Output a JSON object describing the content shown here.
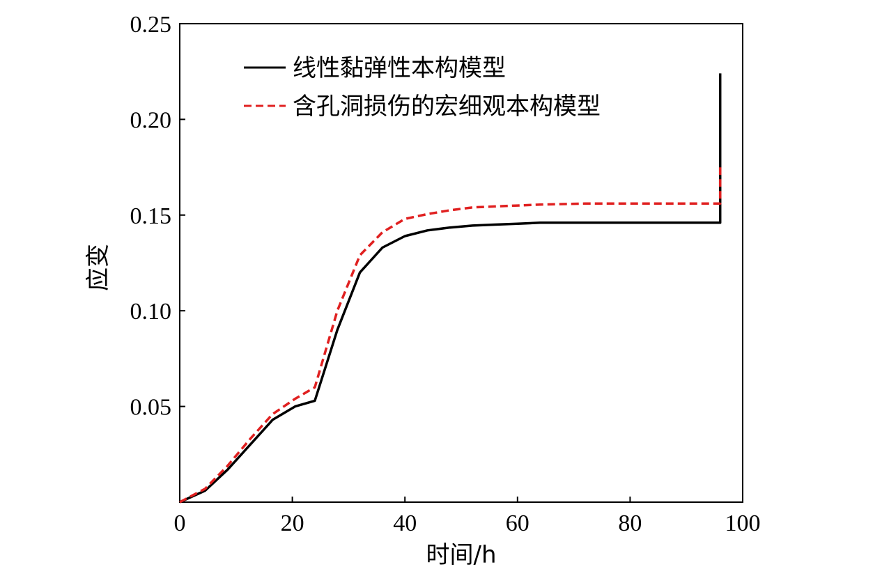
{
  "chart_data": {
    "type": "line",
    "title": "",
    "xlabel": "时间/h",
    "ylabel": "应变",
    "xlim": [
      0,
      100
    ],
    "ylim": [
      0,
      0.25
    ],
    "xticks": [
      0,
      20,
      40,
      60,
      80,
      100
    ],
    "xtick_labels": [
      "0",
      "20",
      "40",
      "60",
      "80",
      "100"
    ],
    "yticks": [
      0.05,
      0.1,
      0.15,
      0.2,
      0.25
    ],
    "ytick_labels": [
      "0.05",
      "0.10",
      "0.15",
      "0.20",
      "0.25"
    ],
    "grid": false,
    "legend_position": "top",
    "series": [
      {
        "name": "线性黏弹性本构模型",
        "color": "#000000",
        "style": "solid",
        "x": [
          0,
          4.5,
          8.5,
          12.5,
          16.5,
          20.5,
          24,
          28,
          32,
          36,
          40,
          44,
          48,
          52,
          56,
          60,
          64,
          72,
          80,
          88,
          96,
          96
        ],
        "y": [
          0,
          0.006,
          0.017,
          0.03,
          0.043,
          0.05,
          0.053,
          0.09,
          0.12,
          0.133,
          0.139,
          0.142,
          0.1435,
          0.1445,
          0.145,
          0.1455,
          0.146,
          0.146,
          0.146,
          0.146,
          0.146,
          0.224
        ]
      },
      {
        "name": "含孔洞损伤的宏细观本构模型",
        "color": "#e02020",
        "style": "dashed",
        "x": [
          0,
          4.5,
          8.5,
          12.5,
          16.5,
          20.5,
          24,
          28,
          32,
          36,
          40,
          44,
          48,
          52,
          56,
          60,
          64,
          72,
          80,
          88,
          96,
          96
        ],
        "y": [
          0,
          0.007,
          0.019,
          0.033,
          0.046,
          0.054,
          0.06,
          0.1,
          0.129,
          0.141,
          0.148,
          0.1505,
          0.1525,
          0.154,
          0.1545,
          0.155,
          0.1555,
          0.156,
          0.156,
          0.156,
          0.156,
          0.175
        ]
      }
    ]
  }
}
